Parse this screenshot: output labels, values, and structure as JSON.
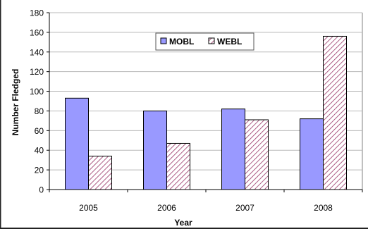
{
  "chart_data": {
    "type": "bar",
    "title": "",
    "xlabel": "Year",
    "ylabel": "Number Fledged",
    "categories": [
      "2005",
      "2006",
      "2007",
      "2008"
    ],
    "series": [
      {
        "name": "MOBL",
        "values": [
          93,
          80,
          82,
          72
        ],
        "color": "#9999ff",
        "pattern": "solid"
      },
      {
        "name": "WEBL",
        "values": [
          34,
          47,
          71,
          156
        ],
        "color": "#993366",
        "pattern": "diagonal-hatch"
      }
    ],
    "ylim": [
      0,
      180
    ],
    "yticks": [
      0,
      20,
      40,
      60,
      80,
      100,
      120,
      140,
      160,
      180
    ],
    "grid": true,
    "legend_position": "top-center"
  }
}
